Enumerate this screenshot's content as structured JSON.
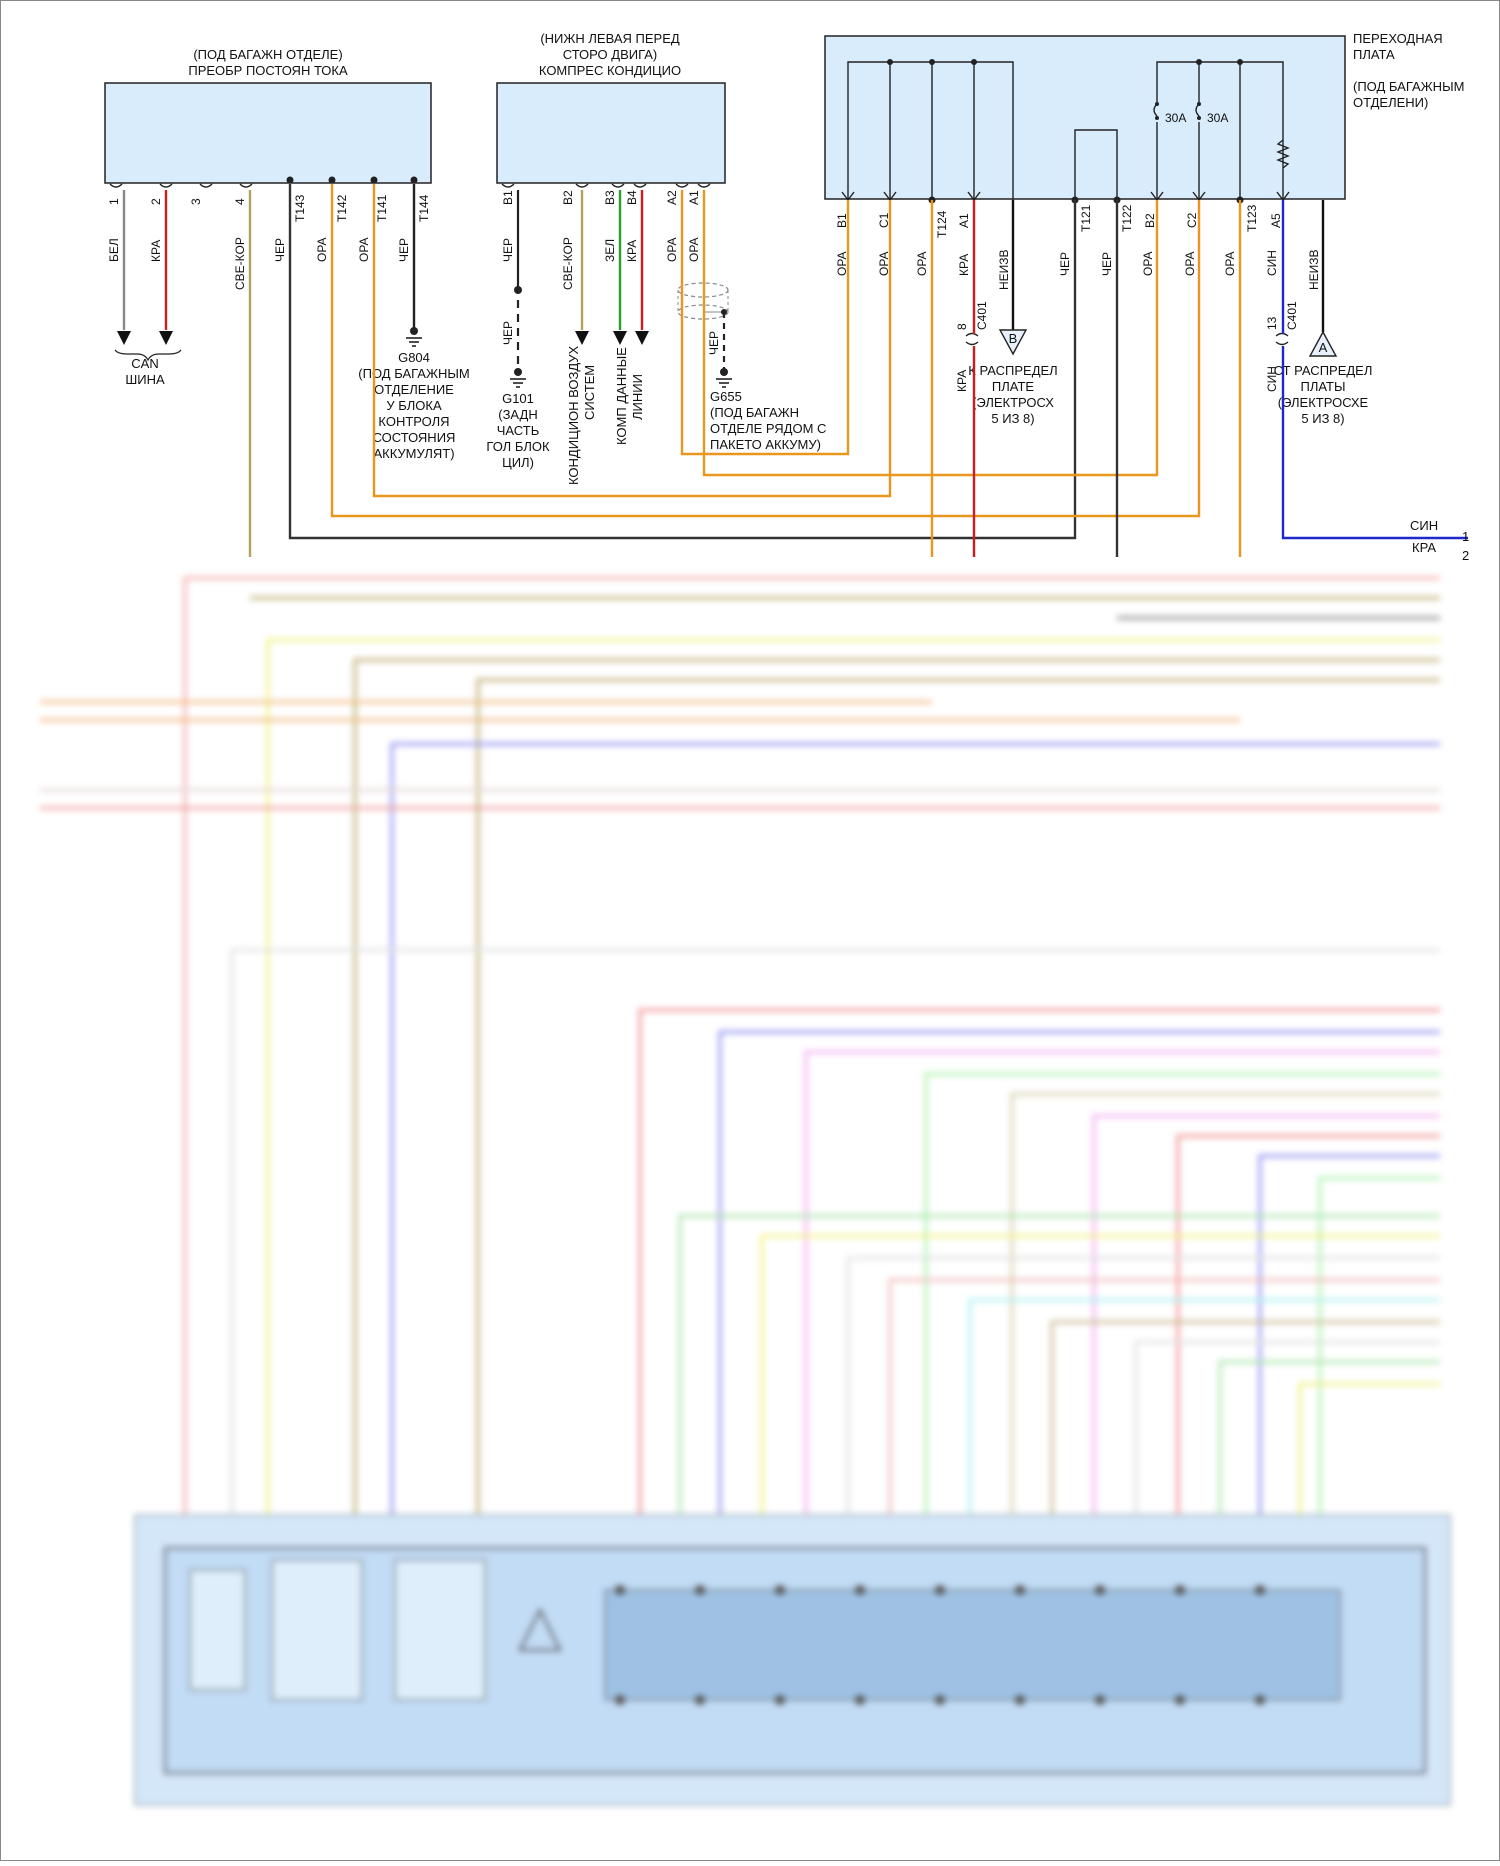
{
  "colors": {
    "orange": "#e8961e",
    "red": "#c81e1e",
    "black": "#222222",
    "blue": "#1e28c8",
    "tan": "#b4a05a",
    "green": "#28a028",
    "gray": "#777777",
    "box_fill": "#d9ecfb"
  },
  "module_dc": {
    "location": "(ПОД БАГАЖН ОТДЕЛЕ)",
    "name": "ПРЕОБР ПОСТОЯН ТОКА",
    "pins": [
      "1",
      "2",
      "3",
      "4",
      "T143",
      "T142",
      "T141",
      "T144"
    ],
    "wires": [
      "БЕЛ",
      "КРА",
      "СВЕ-КОР",
      "ЧЕР",
      "ОРА",
      "ОРА",
      "ЧЕР"
    ]
  },
  "module_ac": {
    "location_line1": "(НИЖН ЛЕВАЯ ПЕРЕД",
    "location_line2": "СТОРО ДВИГА)",
    "name": "КОМПРЕС КОНДИЦИО",
    "pins": [
      "B1",
      "B2",
      "B3",
      "B4",
      "A2",
      "A1"
    ],
    "wires": [
      "ЧЕР",
      "СВЕ-КОР",
      "ЗЕЛ",
      "КРА",
      "ОРА",
      "ОРА",
      "ЧЕР",
      "ЧЕР"
    ]
  },
  "module_adapter": {
    "name_line1": "ПЕРЕХОДНАЯ",
    "name_line2": "ПЛАТА",
    "location_line1": "(ПОД БАГАЖНЫМ",
    "location_line2": "ОТДЕЛЕНИ)",
    "fuse1": "30A",
    "fuse2": "30A",
    "pins": [
      "B1",
      "C1",
      "T124",
      "A1",
      "T121",
      "T122",
      "B2",
      "C2",
      "T123",
      "A5"
    ],
    "wires": [
      "ОРА",
      "ОРА",
      "ОРА",
      "КРА",
      "НЕИЗВ",
      "ЧЕР",
      "ЧЕР",
      "ОРА",
      "ОРА",
      "ОРА",
      "СИН",
      "НЕИЗВ"
    ]
  },
  "can_bus": {
    "line1": "CAN",
    "line2": "ШИНА"
  },
  "g804": {
    "id": "G804",
    "desc": [
      "(ПОД БАГАЖНЫМ",
      "ОТДЕЛЕНИЕ",
      "У БЛОКА",
      "КОНТРОЛЯ",
      "СОСТОЯНИЯ",
      "АККУМУЛЯТ)"
    ]
  },
  "g101": {
    "id": "G101",
    "desc": [
      "(ЗАДН",
      "ЧАСТЬ",
      "ГОЛ БЛОК",
      "ЦИЛ)"
    ]
  },
  "g655": {
    "id": "G655",
    "desc": [
      "(ПОД БАГАЖН",
      "ОТДЕЛЕ РЯДОМ С",
      "ПАКЕТО АККУМУ)"
    ]
  },
  "ac_system": {
    "line1": "КОНДИЦИОН ВОЗДУХ",
    "line2": "СИСТЕМ"
  },
  "comp_data": {
    "line1": "КОМП ДАННЫЕ",
    "line2": "ЛИНИИ"
  },
  "connector_c401_a": {
    "num": "8",
    "name": "C401",
    "wire": "КРА"
  },
  "connector_c401_b": {
    "num": "13",
    "name": "C401",
    "wire": "СИН"
  },
  "offpage_b": {
    "letter": "B",
    "desc": [
      "К РАСПРЕДЕЛ",
      "ПЛАТЕ",
      "(ЭЛЕКТРОСХ",
      "5 ИЗ 8)"
    ]
  },
  "offpage_a": {
    "letter": "A",
    "desc": [
      "СТ РАСПРЕДЕЛ",
      "ПЛАТЫ",
      "(ЭЛЕКТРОСХЕ",
      "5 ИЗ 8)"
    ]
  },
  "right_rail": [
    {
      "wire": "СИН",
      "num": "1"
    },
    {
      "wire": "КРА",
      "num": "2"
    }
  ]
}
